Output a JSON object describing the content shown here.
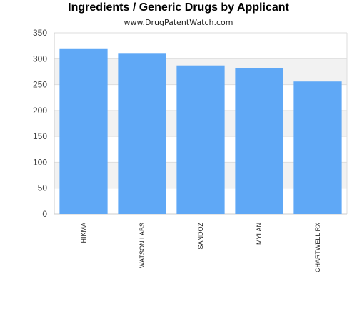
{
  "title": "Ingredients / Generic Drugs by Applicant",
  "subtitle": "www.DrugPatentWatch.com",
  "colors": {
    "bar": "#5fa8f6",
    "band": "#f2f2f2",
    "grid": "#dddddd",
    "axis": "#cccccc"
  },
  "chart_data": {
    "type": "bar",
    "title": "Ingredients / Generic Drugs by Applicant",
    "subtitle": "www.DrugPatentWatch.com",
    "xlabel": "",
    "ylabel": "",
    "categories": [
      "HIKMA",
      "WATSON LABS",
      "SANDOZ",
      "MYLAN",
      "CHARTWELL RX"
    ],
    "values": [
      320,
      311,
      287,
      282,
      256
    ],
    "ylim": [
      0,
      350
    ],
    "yticks": [
      0,
      50,
      100,
      150,
      200,
      250,
      300,
      350
    ],
    "grid": true,
    "legend": "none"
  }
}
